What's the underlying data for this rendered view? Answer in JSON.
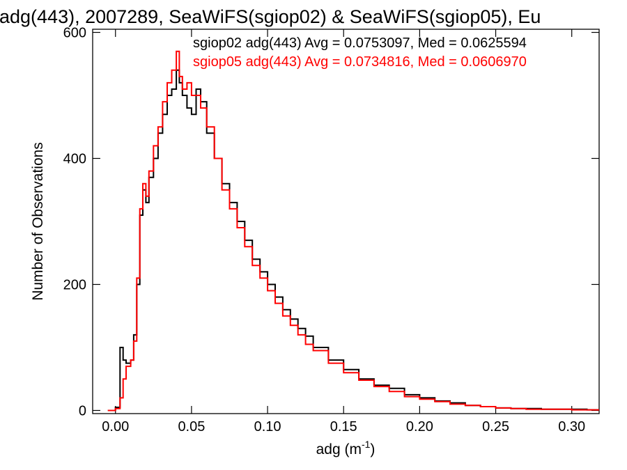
{
  "chart_data": {
    "type": "line",
    "title": "adg(443), 2007289, SeaWiFS(sgiop02) & SeaWiFS(sgiop05), Eu",
    "xlabel": "adg (m",
    "xlabel_sup": "-1",
    "xlabel_close": ")",
    "ylabel": "Number of Observations",
    "xlim": [
      -0.015,
      0.318
    ],
    "ylim": [
      -5,
      605
    ],
    "grid": false,
    "x_ticks": [
      0.0,
      0.05,
      0.1,
      0.15,
      0.2,
      0.25,
      0.3
    ],
    "x_tick_labels": [
      "0.00",
      "0.05",
      "0.10",
      "0.15",
      "0.20",
      "0.25",
      "0.30"
    ],
    "y_ticks": [
      0,
      200,
      400,
      600
    ],
    "y_tick_labels": [
      "0",
      "200",
      "400",
      "600"
    ],
    "legend_placement": "top-right",
    "series": [
      {
        "name": "sgiop02",
        "legend": "sgiop02 adg(443) Avg = 0.0753097, Med = 0.0625594",
        "color": "#000000",
        "x": [
          -0.005,
          0.0,
          0.003,
          0.005,
          0.007,
          0.01,
          0.012,
          0.014,
          0.016,
          0.018,
          0.02,
          0.022,
          0.025,
          0.028,
          0.031,
          0.034,
          0.037,
          0.04,
          0.042,
          0.044,
          0.047,
          0.05,
          0.053,
          0.056,
          0.06,
          0.065,
          0.07,
          0.075,
          0.08,
          0.085,
          0.09,
          0.095,
          0.1,
          0.105,
          0.11,
          0.115,
          0.12,
          0.125,
          0.13,
          0.14,
          0.15,
          0.16,
          0.17,
          0.18,
          0.19,
          0.2,
          0.21,
          0.22,
          0.23,
          0.24,
          0.25,
          0.26,
          0.27,
          0.28,
          0.29,
          0.3,
          0.31,
          0.318
        ],
        "y": [
          0,
          5,
          100,
          80,
          75,
          80,
          120,
          200,
          310,
          350,
          330,
          370,
          400,
          440,
          470,
          500,
          510,
          540,
          520,
          500,
          480,
          470,
          510,
          490,
          440,
          400,
          360,
          330,
          300,
          270,
          240,
          220,
          200,
          180,
          160,
          145,
          130,
          118,
          100,
          80,
          65,
          50,
          40,
          35,
          25,
          20,
          15,
          12,
          8,
          6,
          4,
          3,
          3,
          2,
          2,
          2,
          1,
          1
        ]
      },
      {
        "name": "sgiop05",
        "legend": "sgiop05 adg(443) Avg = 0.0734816, Med = 0.0606970",
        "color": "#ff0000",
        "x": [
          -0.005,
          0.0,
          0.003,
          0.005,
          0.007,
          0.01,
          0.012,
          0.014,
          0.016,
          0.018,
          0.02,
          0.022,
          0.025,
          0.028,
          0.031,
          0.034,
          0.037,
          0.04,
          0.042,
          0.044,
          0.047,
          0.05,
          0.053,
          0.056,
          0.06,
          0.065,
          0.07,
          0.075,
          0.08,
          0.085,
          0.09,
          0.095,
          0.1,
          0.105,
          0.11,
          0.115,
          0.12,
          0.125,
          0.13,
          0.14,
          0.15,
          0.16,
          0.17,
          0.18,
          0.19,
          0.2,
          0.21,
          0.22,
          0.23,
          0.24,
          0.25,
          0.26,
          0.27,
          0.28,
          0.29,
          0.3,
          0.31,
          0.318
        ],
        "y": [
          0,
          3,
          20,
          50,
          70,
          80,
          110,
          210,
          320,
          360,
          340,
          380,
          420,
          450,
          490,
          520,
          540,
          570,
          530,
          510,
          520,
          500,
          500,
          480,
          450,
          400,
          350,
          320,
          290,
          260,
          230,
          210,
          190,
          170,
          150,
          135,
          120,
          105,
          95,
          75,
          60,
          48,
          38,
          30,
          22,
          18,
          14,
          10,
          8,
          6,
          4,
          3,
          2,
          2,
          2,
          1,
          1,
          1
        ]
      }
    ]
  }
}
